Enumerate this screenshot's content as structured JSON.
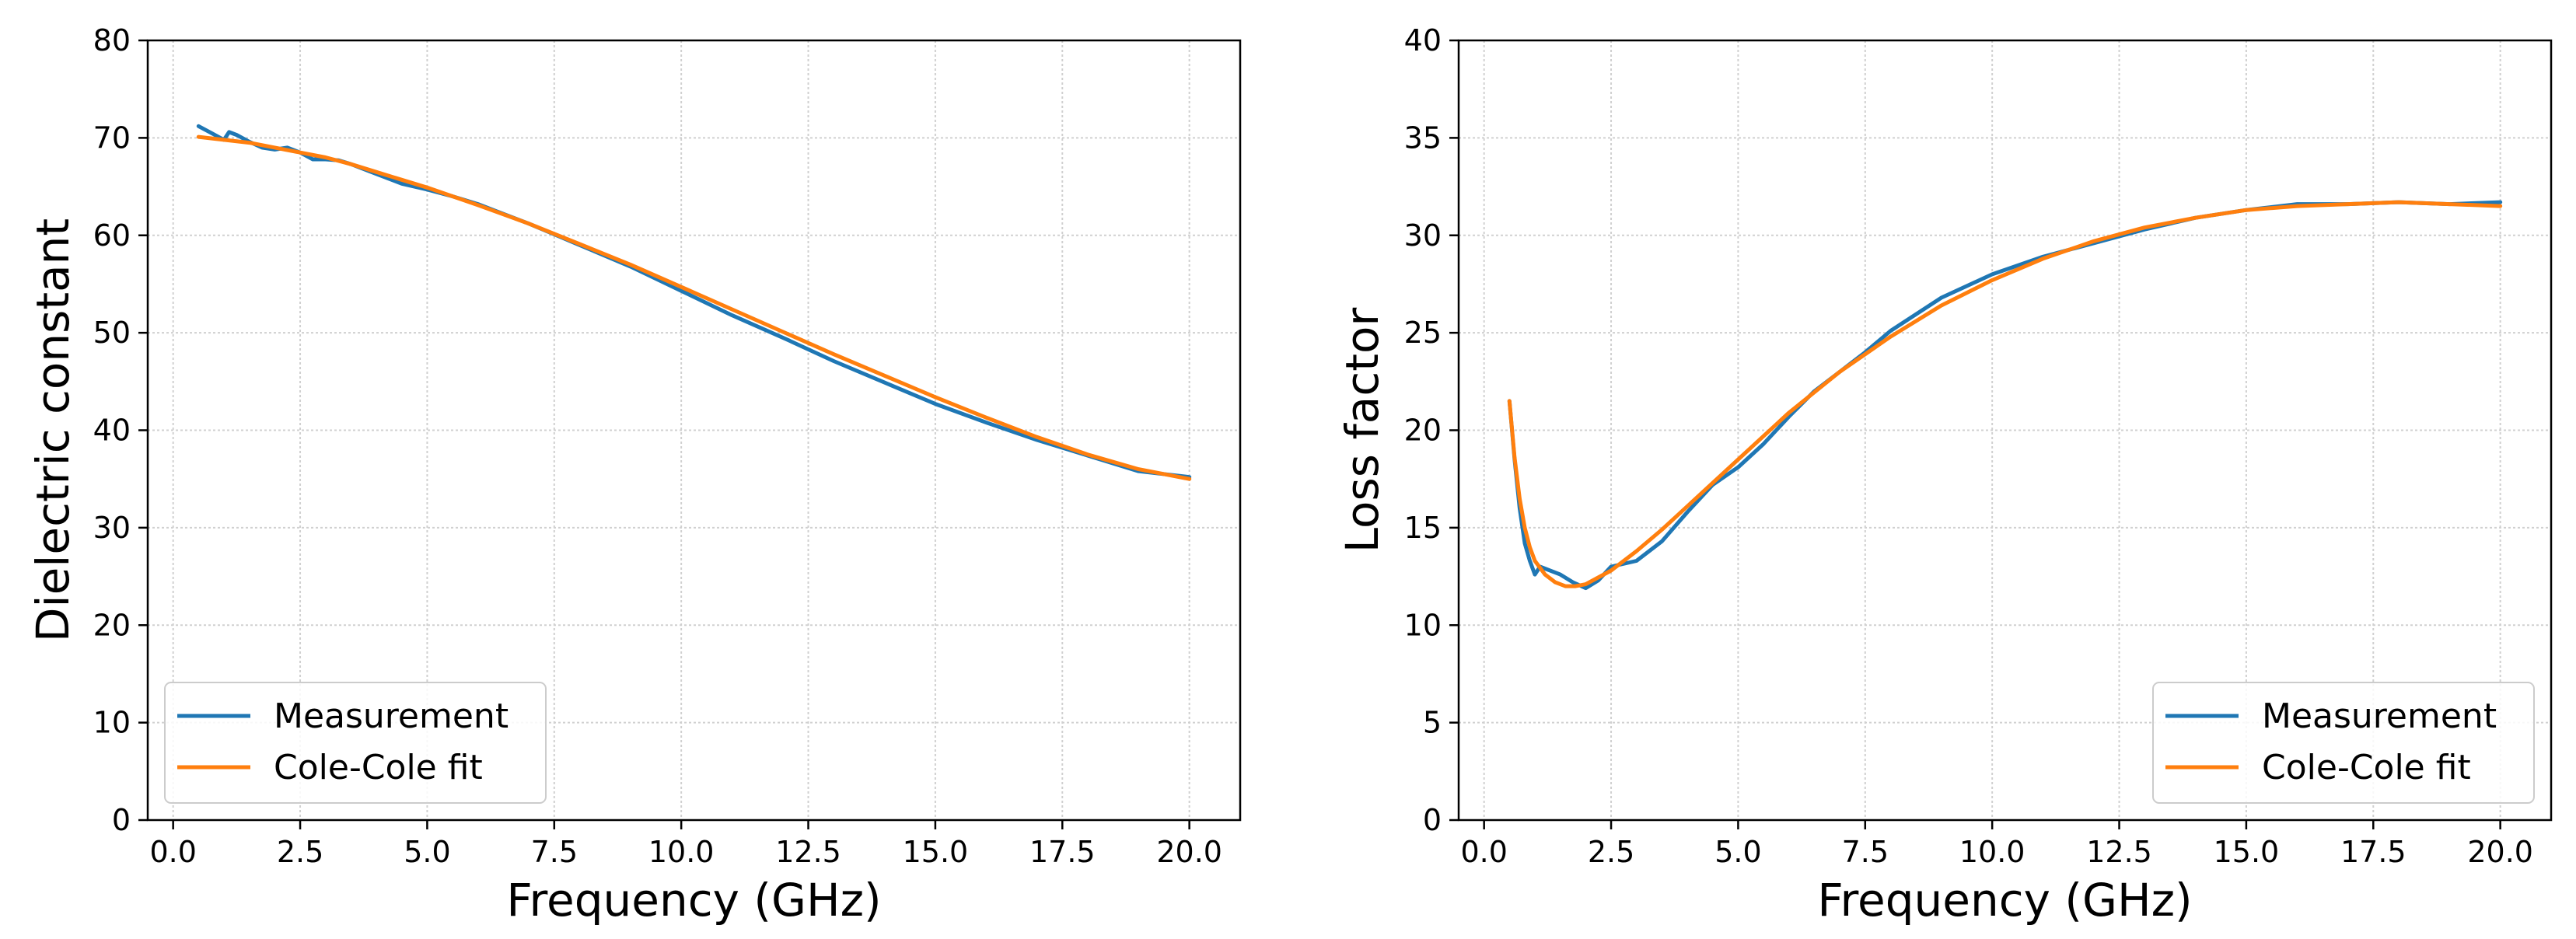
{
  "chart_data": [
    {
      "type": "line",
      "xlabel": "Frequency (GHz)",
      "ylabel": "Dielectric constant",
      "xlim": [
        -0.5,
        21.0
      ],
      "ylim": [
        0,
        80
      ],
      "xticks": [
        "0.0",
        "2.5",
        "5.0",
        "7.5",
        "10.0",
        "12.5",
        "15.0",
        "17.5",
        "20.0"
      ],
      "yticks": [
        "0",
        "10",
        "20",
        "30",
        "40",
        "50",
        "60",
        "70",
        "80"
      ],
      "grid": true,
      "legend_position": "lower-left",
      "series": [
        {
          "name": "Measurement",
          "color": "#1f77b4",
          "x": [
            0.5,
            0.75,
            1.0,
            1.1,
            1.25,
            1.5,
            1.75,
            2.0,
            2.25,
            2.5,
            2.75,
            3.0,
            3.25,
            3.5,
            4.0,
            4.5,
            5.0,
            5.5,
            6.0,
            6.5,
            7.0,
            7.5,
            8.0,
            9.0,
            10.0,
            11.0,
            12.0,
            13.0,
            14.0,
            15.0,
            16.0,
            17.0,
            18.0,
            19.0,
            20.0
          ],
          "y": [
            71.2,
            70.5,
            69.8,
            70.6,
            70.3,
            69.6,
            69.0,
            68.8,
            69.0,
            68.5,
            67.8,
            67.8,
            67.7,
            67.3,
            66.3,
            65.3,
            64.7,
            64.0,
            63.2,
            62.2,
            61.2,
            60.1,
            59.0,
            56.8,
            54.3,
            51.8,
            49.5,
            47.1,
            44.9,
            42.7,
            40.8,
            39.0,
            37.4,
            35.8,
            35.2
          ]
        },
        {
          "name": "Cole-Cole fit",
          "color": "#ff7f0e",
          "x": [
            0.5,
            1.0,
            1.5,
            2.0,
            2.5,
            3.0,
            3.5,
            4.0,
            4.5,
            5.0,
            6.0,
            7.0,
            8.0,
            9.0,
            10.0,
            11.0,
            12.0,
            13.0,
            14.0,
            15.0,
            16.0,
            17.0,
            18.0,
            19.0,
            20.0
          ],
          "y": [
            70.1,
            69.8,
            69.5,
            69.0,
            68.5,
            68.0,
            67.3,
            66.5,
            65.7,
            64.9,
            63.1,
            61.2,
            59.1,
            57.0,
            54.7,
            52.4,
            50.1,
            47.8,
            45.6,
            43.4,
            41.3,
            39.3,
            37.5,
            36.0,
            35.0
          ]
        }
      ]
    },
    {
      "type": "line",
      "xlabel": "Frequency (GHz)",
      "ylabel": "Loss factor",
      "xlim": [
        -0.5,
        21.0
      ],
      "ylim": [
        0,
        40
      ],
      "xticks": [
        "0.0",
        "2.5",
        "5.0",
        "7.5",
        "10.0",
        "12.5",
        "15.0",
        "17.5",
        "20.0"
      ],
      "yticks": [
        "0",
        "5",
        "10",
        "15",
        "20",
        "25",
        "30",
        "35",
        "40"
      ],
      "grid": true,
      "legend_position": "lower-right",
      "series": [
        {
          "name": "Measurement",
          "color": "#1f77b4",
          "x": [
            0.5,
            0.6,
            0.7,
            0.8,
            0.9,
            1.0,
            1.1,
            1.2,
            1.5,
            1.75,
            2.0,
            2.25,
            2.5,
            3.0,
            3.5,
            4.0,
            4.5,
            5.0,
            5.5,
            6.0,
            6.5,
            7.0,
            7.5,
            8.0,
            9.0,
            10.0,
            11.0,
            12.0,
            13.0,
            14.0,
            15.0,
            16.0,
            17.0,
            18.0,
            19.0,
            20.0
          ],
          "y": [
            21.5,
            18.5,
            16.0,
            14.2,
            13.3,
            12.6,
            13.0,
            12.9,
            12.6,
            12.2,
            11.9,
            12.3,
            13.0,
            13.3,
            14.3,
            15.8,
            17.2,
            18.1,
            19.3,
            20.7,
            22.0,
            23.0,
            24.0,
            25.1,
            26.8,
            28.0,
            28.9,
            29.6,
            30.3,
            30.9,
            31.3,
            31.6,
            31.6,
            31.7,
            31.6,
            31.7
          ]
        },
        {
          "name": "Cole-Cole fit",
          "color": "#ff7f0e",
          "x": [
            0.5,
            0.6,
            0.7,
            0.8,
            0.9,
            1.0,
            1.2,
            1.4,
            1.6,
            1.8,
            2.0,
            2.5,
            3.0,
            3.5,
            4.0,
            5.0,
            6.0,
            7.0,
            8.0,
            9.0,
            10.0,
            11.0,
            12.0,
            13.0,
            14.0,
            15.0,
            16.0,
            17.0,
            18.0,
            19.0,
            20.0
          ],
          "y": [
            21.5,
            18.6,
            16.5,
            15.0,
            14.0,
            13.3,
            12.6,
            12.2,
            12.0,
            12.0,
            12.1,
            12.8,
            13.8,
            14.9,
            16.1,
            18.5,
            20.9,
            23.0,
            24.8,
            26.4,
            27.7,
            28.8,
            29.7,
            30.4,
            30.9,
            31.3,
            31.5,
            31.6,
            31.7,
            31.6,
            31.5
          ]
        }
      ]
    }
  ]
}
